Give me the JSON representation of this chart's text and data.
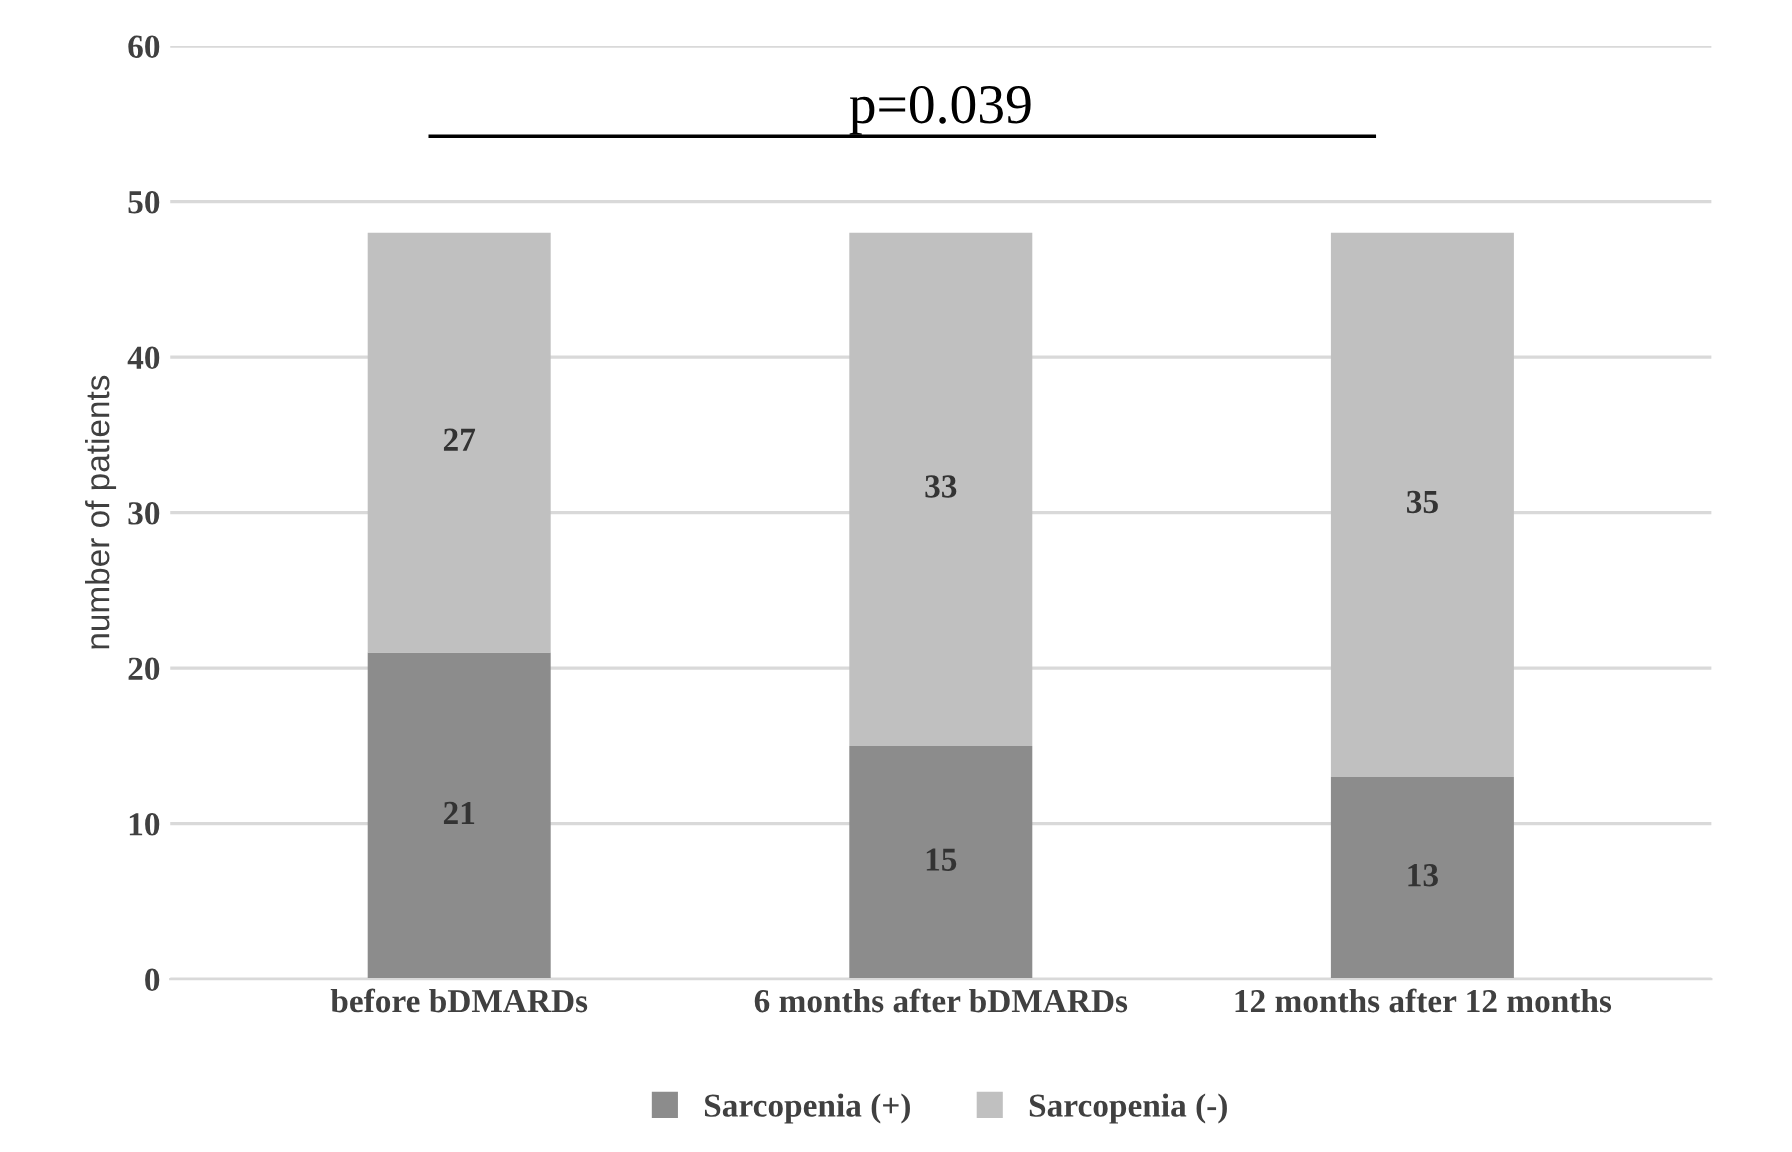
{
  "chart_data": {
    "type": "bar",
    "stacked": true,
    "ylabel": "number of patients",
    "categories": [
      "before bDMARDs",
      "6 months after bDMARDs",
      "12 months after 12 months"
    ],
    "series": [
      {
        "name": "Sarcopenia (+)",
        "color": "#8c8c8c",
        "values": [
          21,
          15,
          13
        ]
      },
      {
        "name": "Sarcopenia (-)",
        "color": "#c0c0c0",
        "values": [
          27,
          33,
          35
        ]
      }
    ],
    "ylim": [
      0,
      60
    ],
    "yticks": [
      0,
      10,
      20,
      30,
      40,
      50,
      60
    ],
    "grid": "y",
    "legend": "bottom",
    "data_labels": true,
    "annotations": [
      "p=0.039"
    ]
  }
}
